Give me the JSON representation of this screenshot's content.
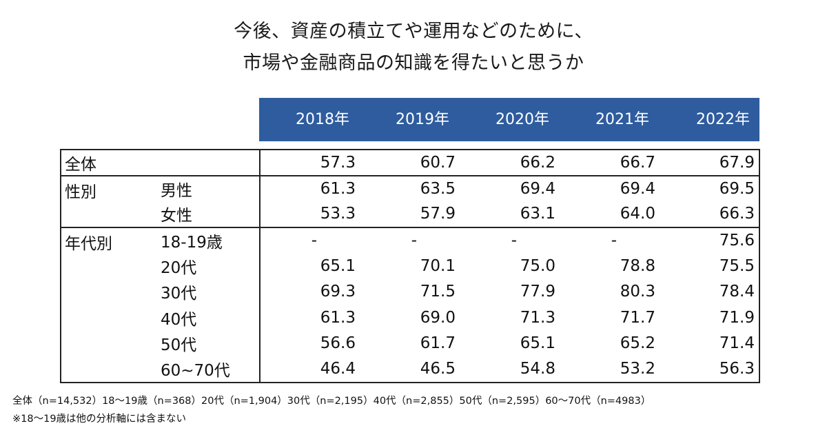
{
  "title": {
    "line1": "今後、資産の積立てや運用などのために、",
    "line2": "市場や金融商品の知識を得たいと思うか"
  },
  "years": [
    "2018年",
    "2019年",
    "2020年",
    "2021年",
    "2022年"
  ],
  "rows": {
    "total": {
      "label": "全体",
      "values": [
        "57.3",
        "60.7",
        "66.2",
        "66.7",
        "67.9"
      ]
    },
    "gender": {
      "group_label": "性別",
      "male": {
        "label": "男性",
        "values": [
          "61.3",
          "63.5",
          "69.4",
          "69.4",
          "69.5"
        ]
      },
      "female": {
        "label": "女性",
        "values": [
          "53.3",
          "57.9",
          "63.1",
          "64.0",
          "66.3"
        ]
      }
    },
    "age": {
      "group_label": "年代別",
      "a18": {
        "label": "18-19歳",
        "values": [
          "-",
          "-",
          "-",
          "-",
          "75.6"
        ]
      },
      "a20": {
        "label": "20代",
        "values": [
          "65.1",
          "70.1",
          "75.0",
          "78.8",
          "75.5"
        ]
      },
      "a30": {
        "label": "30代",
        "values": [
          "69.3",
          "71.5",
          "77.9",
          "80.3",
          "78.4"
        ]
      },
      "a40": {
        "label": "40代",
        "values": [
          "61.3",
          "69.0",
          "71.3",
          "71.7",
          "71.9"
        ]
      },
      "a50": {
        "label": "50代",
        "values": [
          "56.6",
          "61.7",
          "65.1",
          "65.2",
          "71.4"
        ]
      },
      "a60": {
        "label": "60~70代",
        "values": [
          "46.4",
          "46.5",
          "54.8",
          "53.2",
          "56.3"
        ]
      }
    }
  },
  "notes": {
    "line1": "全体（n=14,532）18～19歳（n=368）20代（n=1,904）30代（n=2,195）40代（n=2,855）50代（n=2,595）60～70代（n=4983）",
    "line2": "※18～19歳は他の分析軸には含まない"
  }
}
